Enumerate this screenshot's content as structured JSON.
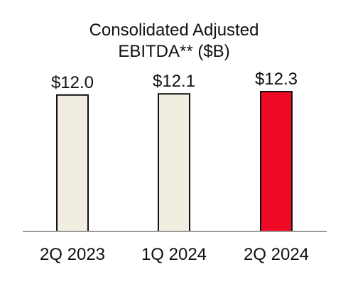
{
  "chart_data": {
    "type": "bar",
    "title_lines": [
      "Consolidated Adjusted",
      "EBITDA** ($B)"
    ],
    "categories": [
      "2Q 2023",
      "1Q 2024",
      "2Q 2024"
    ],
    "values": [
      12.0,
      12.1,
      12.3
    ],
    "value_labels": [
      "$12.0",
      "$12.1",
      "$12.3"
    ],
    "bar_colors": [
      "#f2ede1",
      "#f2ede1",
      "#ee0a24"
    ],
    "bar_stroke": "#111111",
    "axis_color": "#999999",
    "ylim": [
      0,
      12.3
    ],
    "grid": false,
    "legend": "none"
  }
}
